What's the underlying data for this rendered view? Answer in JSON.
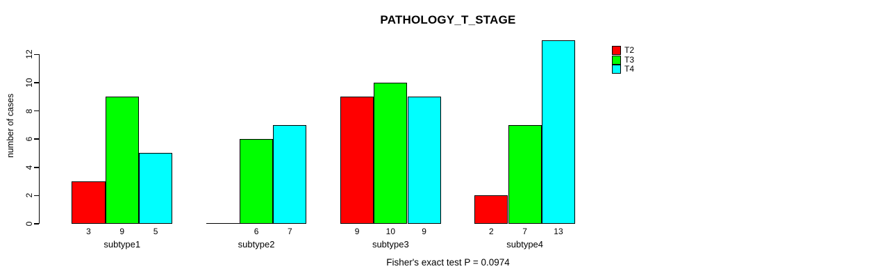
{
  "chart_data": {
    "type": "bar",
    "title": "PATHOLOGY_T_STAGE",
    "ylabel": "number of cases",
    "xlabel": "",
    "categories": [
      "subtype1",
      "subtype2",
      "subtype3",
      "subtype4"
    ],
    "series": [
      {
        "name": "T2",
        "color": "#ff0000",
        "values": [
          3,
          0,
          9,
          2
        ],
        "value_labels": [
          "3",
          "",
          "9",
          "2"
        ]
      },
      {
        "name": "T3",
        "color": "#00ff00",
        "values": [
          9,
          6,
          10,
          7
        ],
        "value_labels": [
          "9",
          "6",
          "10",
          "7"
        ]
      },
      {
        "name": "T4",
        "color": "#00ffff",
        "values": [
          5,
          7,
          9,
          13
        ],
        "value_labels": [
          "5",
          "7",
          "9",
          "13"
        ]
      }
    ],
    "yticks": [
      0,
      2,
      4,
      6,
      8,
      10,
      12
    ],
    "ylim": [
      0,
      13
    ],
    "grid": false,
    "legend": {
      "position": "top-right",
      "entries": [
        "T2",
        "T3",
        "T4"
      ]
    },
    "annotation": "Fisher's exact test P = 0.0974"
  }
}
